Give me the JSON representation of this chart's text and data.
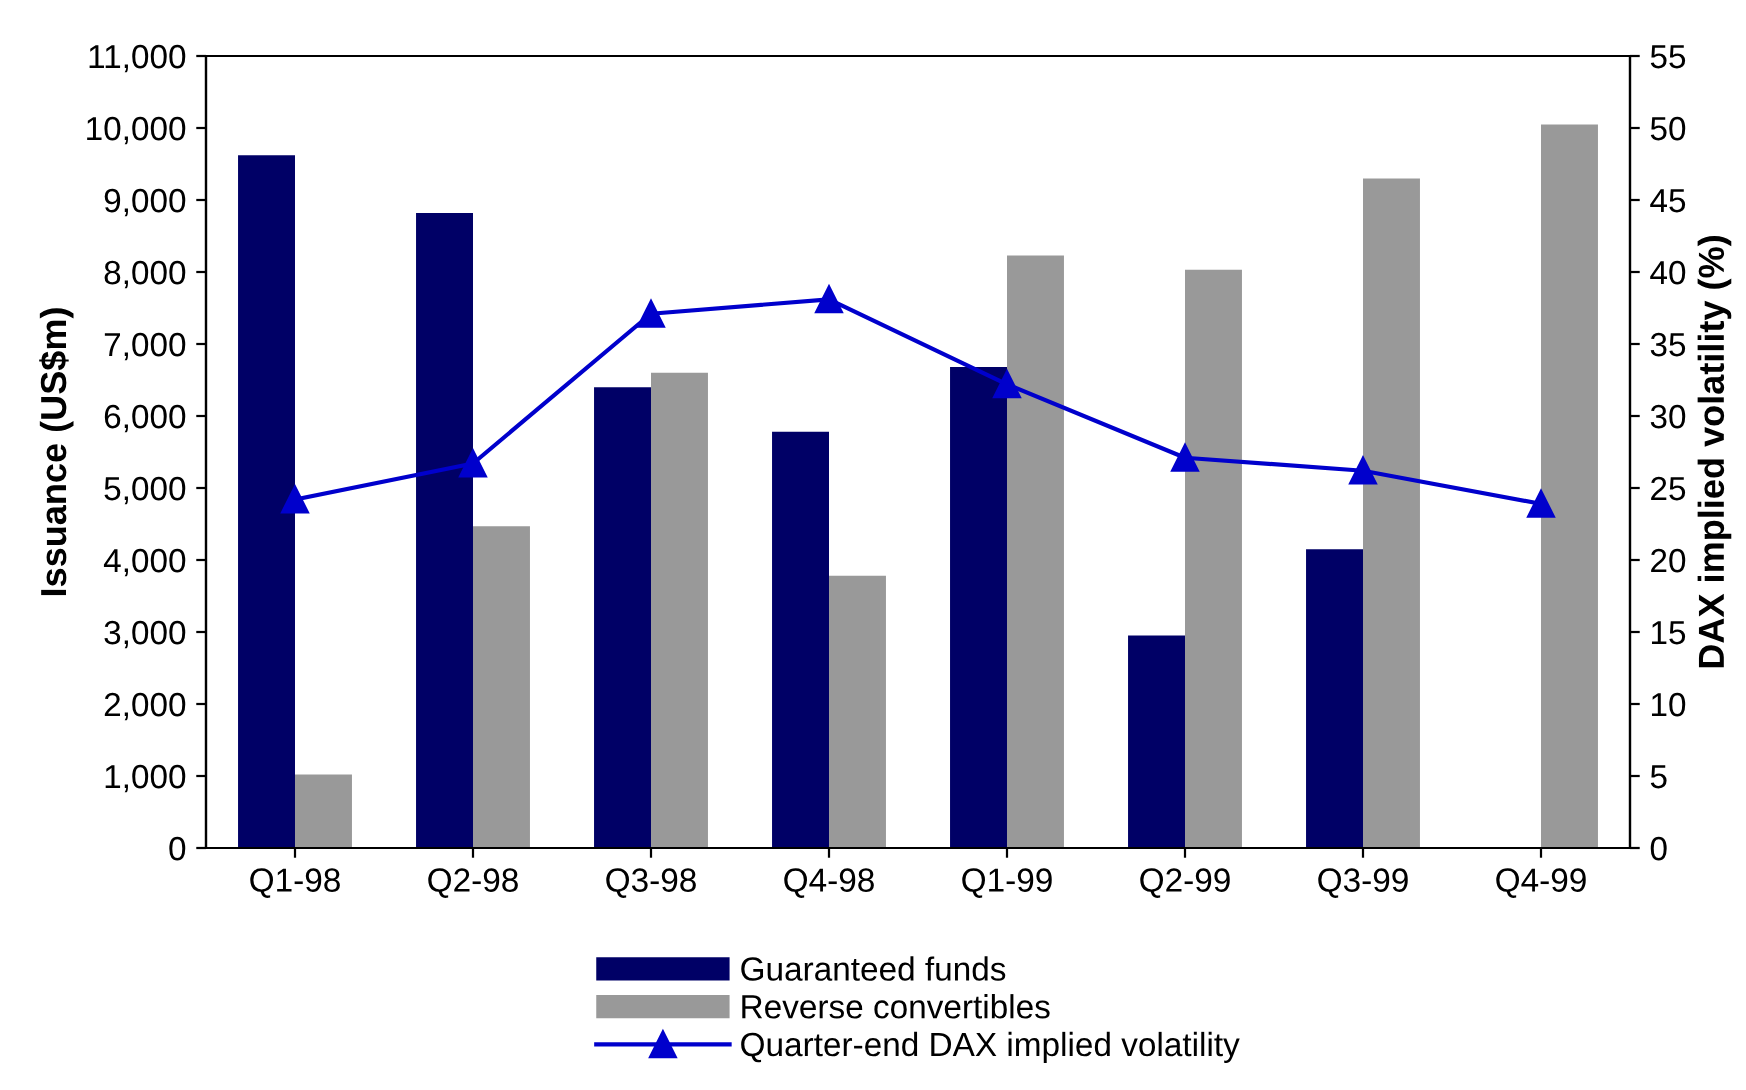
{
  "chart_data": {
    "type": "bar",
    "categories": [
      "Q1-98",
      "Q2-98",
      "Q3-98",
      "Q4-98",
      "Q1-99",
      "Q2-99",
      "Q3-99",
      "Q4-99"
    ],
    "ylabel": "Issuance (US$m)",
    "y2label": "DAX implied volatility (%)",
    "ylim": [
      0,
      11000
    ],
    "yticks": [
      {
        "value": 0,
        "label": "0"
      },
      {
        "value": 1000,
        "label": "1,000"
      },
      {
        "value": 2000,
        "label": "2,000"
      },
      {
        "value": 3000,
        "label": "3,000"
      },
      {
        "value": 4000,
        "label": "4,000"
      },
      {
        "value": 5000,
        "label": "5,000"
      },
      {
        "value": 6000,
        "label": "6,000"
      },
      {
        "value": 7000,
        "label": "7,000"
      },
      {
        "value": 8000,
        "label": "8,000"
      },
      {
        "value": 9000,
        "label": "9,000"
      },
      {
        "value": 10000,
        "label": "10,000"
      },
      {
        "value": 11000,
        "label": "11,000"
      }
    ],
    "y2lim": [
      0,
      55
    ],
    "y2ticks": [
      0,
      5,
      10,
      15,
      20,
      25,
      30,
      35,
      40,
      45,
      50,
      55
    ],
    "grid": false,
    "legend": "bottom",
    "series": [
      {
        "name": "Guaranteed funds",
        "color": "#000066",
        "values": [
          9620,
          8820,
          6400,
          5780,
          6680,
          2950,
          4150,
          null
        ]
      },
      {
        "name": "Reverse convertibles",
        "color": "#999999",
        "values": [
          1020,
          4470,
          6600,
          3780,
          8230,
          8030,
          9300,
          10050
        ]
      },
      {
        "name": "Quarter-end DAX implied volatility",
        "type": "line",
        "axis": "y2",
        "color": "#0000cc",
        "marker": "triangle",
        "line_style": "solid",
        "values": [
          24.2,
          26.7,
          37.1,
          38.1,
          32.2,
          27.1,
          26.2,
          23.9
        ]
      }
    ]
  }
}
